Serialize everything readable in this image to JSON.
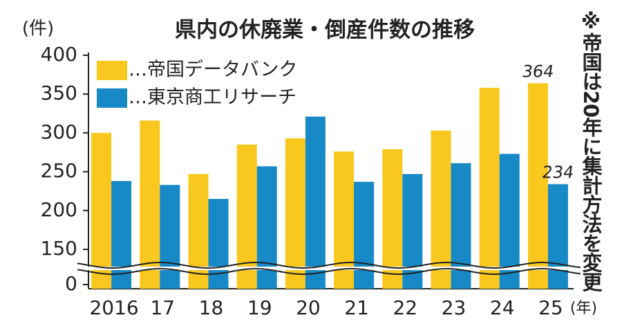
{
  "chart_data": {
    "type": "bar",
    "title": "県内の休廃業・倒産件数の推移",
    "y_label": "(件)",
    "x_unit": "(年)",
    "note": "※帝国は20年に集計方法を変更",
    "categories": [
      "2016",
      "17",
      "18",
      "19",
      "20",
      "21",
      "22",
      "23",
      "24",
      "25"
    ],
    "series": [
      {
        "name": "…帝国データバンク",
        "color": "#f8c81e",
        "values": [
          300,
          316,
          247,
          285,
          293,
          276,
          279,
          303,
          358,
          364
        ],
        "value_labels": [
          null,
          null,
          null,
          null,
          null,
          null,
          null,
          null,
          null,
          "364"
        ]
      },
      {
        "name": "…東京商工リサーチ",
        "color": "#1789c6",
        "values": [
          238,
          233,
          215,
          257,
          321,
          237,
          247,
          261,
          273,
          234
        ],
        "value_labels": [
          null,
          null,
          null,
          null,
          null,
          null,
          null,
          null,
          null,
          "234"
        ]
      }
    ],
    "ylim": [
      0,
      400
    ],
    "yticks": [
      0,
      150,
      200,
      250,
      300,
      350,
      400
    ],
    "axis_break": true
  }
}
